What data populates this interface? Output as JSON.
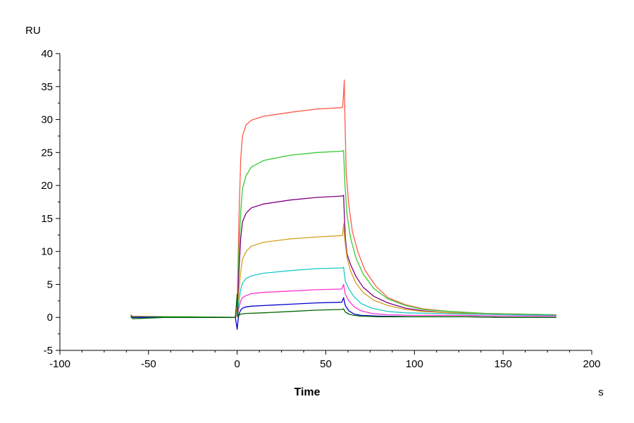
{
  "chart_data": {
    "type": "line",
    "title": "",
    "xlabel": "Time",
    "x_unit": "s",
    "ylabel": "RU",
    "xlim": [
      -100,
      200
    ],
    "ylim": [
      -5,
      40
    ],
    "x_ticks": [
      -100,
      -50,
      0,
      50,
      100,
      150,
      200
    ],
    "y_ticks": [
      -5,
      0,
      5,
      10,
      15,
      20,
      25,
      30,
      35,
      40
    ],
    "grid": false,
    "legend": "none",
    "series": [
      {
        "color": "#ff5a4a",
        "points": [
          [
            -60,
            0.2
          ],
          [
            -30,
            0.1
          ],
          [
            -1,
            0.0
          ],
          [
            0,
            1.5
          ],
          [
            1,
            15
          ],
          [
            2,
            24
          ],
          [
            3,
            27.5
          ],
          [
            5,
            29.2
          ],
          [
            8,
            29.9
          ],
          [
            15,
            30.5
          ],
          [
            30,
            31.1
          ],
          [
            45,
            31.6
          ],
          [
            59,
            31.8
          ],
          [
            59.5,
            31.9
          ],
          [
            60,
            34
          ],
          [
            60.4,
            36
          ],
          [
            60.8,
            30
          ],
          [
            61.5,
            22
          ],
          [
            63,
            17
          ],
          [
            65,
            13
          ],
          [
            68,
            10
          ],
          [
            72,
            7.2
          ],
          [
            78,
            4.8
          ],
          [
            85,
            3.0
          ],
          [
            95,
            1.9
          ],
          [
            105,
            1.3
          ],
          [
            120,
            0.9
          ],
          [
            140,
            0.6
          ],
          [
            160,
            0.5
          ],
          [
            180,
            0.4
          ]
        ]
      },
      {
        "color": "#33cc33",
        "points": [
          [
            -60,
            0.1
          ],
          [
            -30,
            0.1
          ],
          [
            -1,
            0.0
          ],
          [
            0,
            1
          ],
          [
            1,
            10
          ],
          [
            2,
            16
          ],
          [
            3,
            19.5
          ],
          [
            5,
            21.5
          ],
          [
            8,
            22.8
          ],
          [
            15,
            23.8
          ],
          [
            30,
            24.6
          ],
          [
            45,
            25.0
          ],
          [
            59,
            25.2
          ],
          [
            60,
            25.3
          ],
          [
            60.8,
            20
          ],
          [
            62,
            15.5
          ],
          [
            64,
            12
          ],
          [
            67,
            9
          ],
          [
            71,
            6.6
          ],
          [
            77,
            4.4
          ],
          [
            85,
            2.8
          ],
          [
            95,
            1.8
          ],
          [
            105,
            1.2
          ],
          [
            120,
            0.9
          ],
          [
            140,
            0.6
          ],
          [
            160,
            0.5
          ],
          [
            180,
            0.4
          ]
        ]
      },
      {
        "color": "#800080",
        "points": [
          [
            -60,
            0.0
          ],
          [
            -30,
            0.0
          ],
          [
            -1,
            0.0
          ],
          [
            0,
            0.5
          ],
          [
            1,
            7
          ],
          [
            2,
            12
          ],
          [
            3,
            14.5
          ],
          [
            5,
            15.8
          ],
          [
            8,
            16.6
          ],
          [
            15,
            17.2
          ],
          [
            30,
            17.8
          ],
          [
            45,
            18.2
          ],
          [
            59,
            18.4
          ],
          [
            60,
            18.5
          ],
          [
            61,
            12
          ],
          [
            62,
            9.6
          ],
          [
            64,
            8
          ],
          [
            67,
            6.2
          ],
          [
            71,
            4.6
          ],
          [
            77,
            3.2
          ],
          [
            85,
            2.2
          ],
          [
            95,
            1.4
          ],
          [
            105,
            1.0
          ],
          [
            120,
            0.7
          ],
          [
            140,
            0.5
          ],
          [
            160,
            0.4
          ],
          [
            180,
            0.3
          ]
        ]
      },
      {
        "color": "#d4a020",
        "points": [
          [
            -60,
            0.0
          ],
          [
            -30,
            0.0
          ],
          [
            -1,
            0.0
          ],
          [
            0,
            0.5
          ],
          [
            1,
            4
          ],
          [
            2,
            7
          ],
          [
            3,
            8.8
          ],
          [
            5,
            10
          ],
          [
            8,
            10.8
          ],
          [
            15,
            11.4
          ],
          [
            30,
            11.9
          ],
          [
            45,
            12.2
          ],
          [
            59,
            12.4
          ],
          [
            59.5,
            12.5
          ],
          [
            60,
            14.2
          ],
          [
            60.6,
            12
          ],
          [
            62,
            9
          ],
          [
            64,
            7
          ],
          [
            67,
            5.2
          ],
          [
            71,
            3.8
          ],
          [
            77,
            2.6
          ],
          [
            85,
            1.8
          ],
          [
            95,
            1.2
          ],
          [
            105,
            0.9
          ],
          [
            120,
            0.7
          ],
          [
            140,
            0.5
          ],
          [
            160,
            0.4
          ],
          [
            180,
            0.3
          ]
        ]
      },
      {
        "color": "#1ec8c8",
        "points": [
          [
            -60,
            0.0
          ],
          [
            -30,
            0.0
          ],
          [
            -1,
            0.0
          ],
          [
            0,
            0.3
          ],
          [
            1,
            2.5
          ],
          [
            2,
            4.2
          ],
          [
            3,
            5.2
          ],
          [
            5,
            5.9
          ],
          [
            8,
            6.3
          ],
          [
            15,
            6.7
          ],
          [
            30,
            7.1
          ],
          [
            45,
            7.4
          ],
          [
            59,
            7.5
          ],
          [
            60,
            7.6
          ],
          [
            61,
            5.5
          ],
          [
            63,
            4.3
          ],
          [
            66,
            3.1
          ],
          [
            70,
            2.1
          ],
          [
            76,
            1.4
          ],
          [
            85,
            0.9
          ],
          [
            95,
            0.7
          ],
          [
            110,
            0.6
          ],
          [
            130,
            0.5
          ],
          [
            150,
            0.4
          ],
          [
            180,
            0.3
          ]
        ]
      },
      {
        "color": "#ff33cc",
        "points": [
          [
            -60,
            0.0
          ],
          [
            -30,
            0.0
          ],
          [
            -1,
            0.0
          ],
          [
            0,
            0.2
          ],
          [
            1,
            1.5
          ],
          [
            2,
            2.5
          ],
          [
            3,
            3.0
          ],
          [
            5,
            3.3
          ],
          [
            8,
            3.6
          ],
          [
            15,
            3.8
          ],
          [
            30,
            4.0
          ],
          [
            45,
            4.2
          ],
          [
            59,
            4.3
          ],
          [
            60,
            5.0
          ],
          [
            61,
            3.5
          ],
          [
            63,
            2.5
          ],
          [
            66,
            1.6
          ],
          [
            70,
            1.0
          ],
          [
            76,
            0.6
          ],
          [
            85,
            0.4
          ],
          [
            100,
            0.3
          ],
          [
            130,
            0.3
          ],
          [
            150,
            0.2
          ],
          [
            180,
            0.2
          ]
        ]
      },
      {
        "color": "#0000cc",
        "points": [
          [
            -60,
            0.0
          ],
          [
            -30,
            0.0
          ],
          [
            -1,
            0.0
          ],
          [
            0,
            -1.8
          ],
          [
            0.5,
            -0.5
          ],
          [
            1,
            0.5
          ],
          [
            2,
            1.1
          ],
          [
            3,
            1.4
          ],
          [
            5,
            1.6
          ],
          [
            8,
            1.7
          ],
          [
            15,
            1.8
          ],
          [
            30,
            2.0
          ],
          [
            45,
            2.2
          ],
          [
            59,
            2.3
          ],
          [
            60,
            3.0
          ],
          [
            61,
            1.8
          ],
          [
            63,
            1.0
          ],
          [
            66,
            0.5
          ],
          [
            70,
            0.3
          ],
          [
            80,
            0.2
          ],
          [
            100,
            0.1
          ],
          [
            130,
            0.1
          ],
          [
            150,
            0.0
          ],
          [
            180,
            0.0
          ]
        ]
      },
      {
        "color": "#006600",
        "points": [
          [
            -60,
            0.4
          ],
          [
            -59,
            -0.2
          ],
          [
            -40,
            0.0
          ],
          [
            -1,
            0.0
          ],
          [
            0,
            3.5
          ],
          [
            0.5,
            0.0
          ],
          [
            1,
            0.3
          ],
          [
            2,
            0.5
          ],
          [
            5,
            0.6
          ],
          [
            15,
            0.7
          ],
          [
            30,
            0.9
          ],
          [
            45,
            1.1
          ],
          [
            59,
            1.2
          ],
          [
            60,
            1.3
          ],
          [
            61,
            0.8
          ],
          [
            63,
            0.5
          ],
          [
            66,
            0.3
          ],
          [
            70,
            0.2
          ],
          [
            80,
            0.1
          ],
          [
            100,
            0.1
          ],
          [
            130,
            0.1
          ],
          [
            150,
            0.0
          ],
          [
            180,
            0.0
          ]
        ]
      }
    ]
  }
}
